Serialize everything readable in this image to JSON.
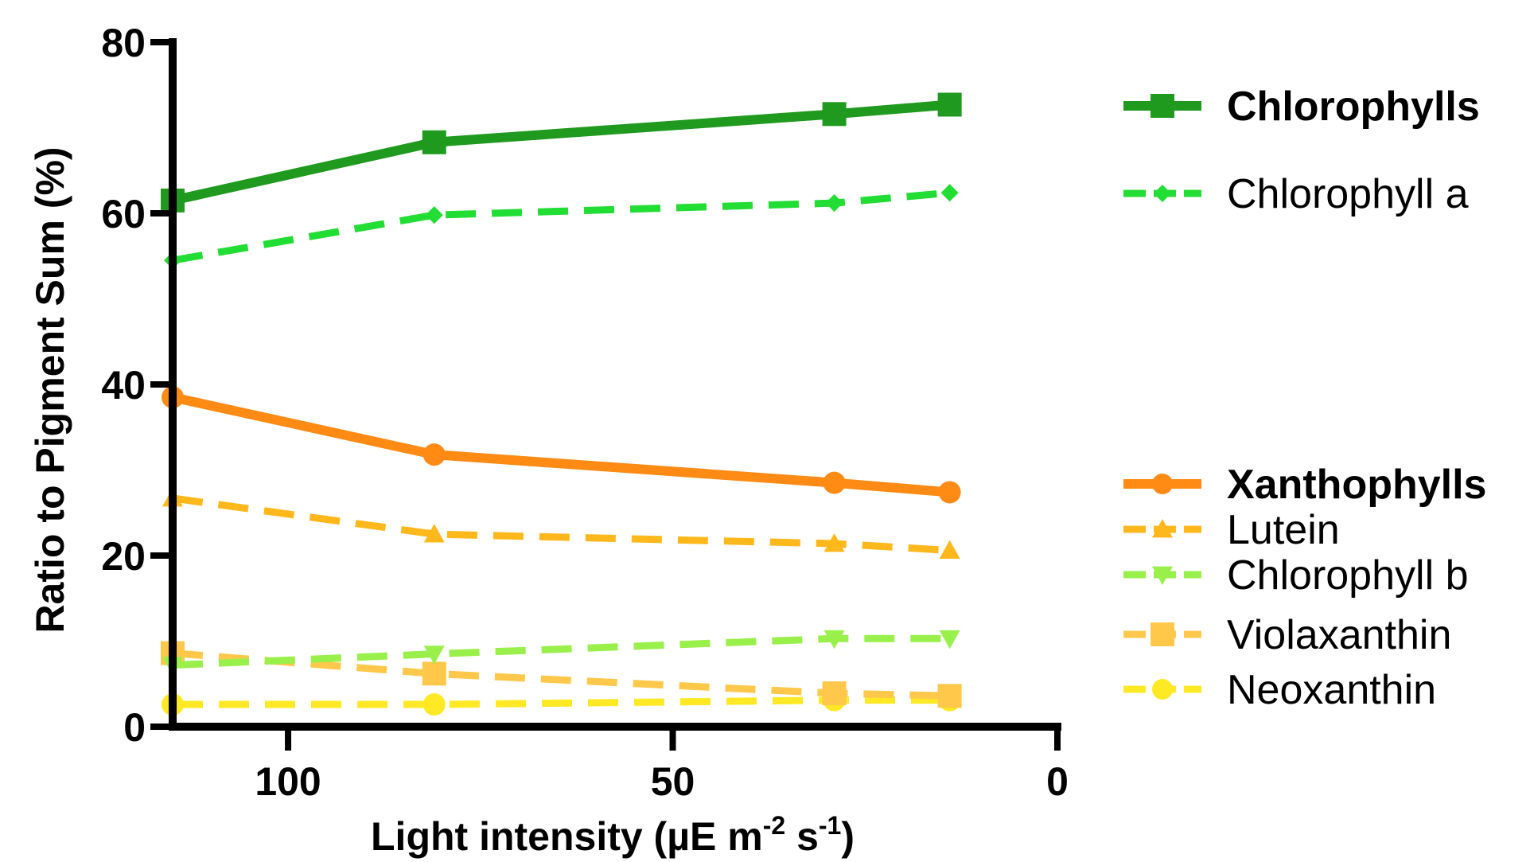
{
  "chart_data": {
    "type": "line",
    "xlabel": "Light intensity (µE m",
    "xlabel_sup1": "-2",
    "xlabel_mid": " s",
    "xlabel_sup2": "-1",
    "xlabel_end": ")",
    "ylabel": "Ratio to Pigment Sum (%)",
    "xlim": [
      115,
      0
    ],
    "ylim": [
      0,
      80
    ],
    "x_reversed": true,
    "xticks": [
      100,
      50,
      0
    ],
    "yticks": [
      0,
      20,
      40,
      60,
      80
    ],
    "x": [
      115,
      81,
      29,
      14
    ],
    "legend_position": "right",
    "series": [
      {
        "name": "Chlorophylls",
        "values": [
          61.5,
          68.3,
          71.6,
          72.7
        ],
        "color": "#1f9a1f",
        "dashed": false,
        "marker": "square",
        "bold": true
      },
      {
        "name": "Chlorophyll a",
        "values": [
          54.5,
          59.8,
          61.2,
          62.4
        ],
        "color": "#22dd33",
        "dashed": true,
        "marker": "diamond",
        "bold": false
      },
      {
        "name": "Xanthophylls",
        "values": [
          38.5,
          31.8,
          28.5,
          27.4
        ],
        "color": "#ff8a14",
        "dashed": false,
        "marker": "circle",
        "bold": true
      },
      {
        "name": "Lutein",
        "values": [
          26.7,
          22.5,
          21.4,
          20.6
        ],
        "color": "#ffb81c",
        "dashed": true,
        "marker": "triangle-up",
        "bold": false
      },
      {
        "name": "Chlorophyll b",
        "values": [
          7.2,
          8.5,
          10.3,
          10.3
        ],
        "color": "#99f04a",
        "dashed": true,
        "marker": "triangle-down",
        "bold": false
      },
      {
        "name": "Violaxanthin",
        "values": [
          8.6,
          6.2,
          3.9,
          3.6
        ],
        "color": "#ffc84a",
        "dashed": true,
        "marker": "square",
        "bold": false
      },
      {
        "name": "Neoxanthin",
        "values": [
          2.6,
          2.6,
          3.1,
          3.1
        ],
        "color": "#ffe824",
        "dashed": true,
        "marker": "circle",
        "bold": false
      }
    ]
  }
}
